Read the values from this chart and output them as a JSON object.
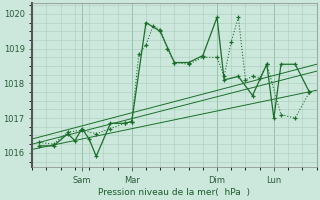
{
  "bg_color": "#cce8dc",
  "grid_color": "#aaccbb",
  "line_color": "#1a6e2a",
  "xlabel": "Pression niveau de la mer(  hPa  )",
  "ylim": [
    1015.6,
    1020.3
  ],
  "yticks": [
    1016,
    1017,
    1018,
    1019,
    1020
  ],
  "xlim": [
    0,
    40
  ],
  "xtick_positions": [
    7,
    14,
    26,
    34
  ],
  "xtick_labels": [
    "Sam",
    "Mar",
    "Dim",
    "Lun"
  ],
  "grid_xticks": [
    0,
    2,
    4,
    6,
    8,
    10,
    12,
    14,
    16,
    18,
    20,
    22,
    24,
    26,
    28,
    30,
    32,
    34,
    36,
    38,
    40
  ],
  "vlines": [
    7,
    14,
    26,
    34
  ],
  "line1_x": [
    1,
    3,
    5,
    7,
    9,
    11,
    13,
    14,
    15,
    16,
    17,
    18,
    19,
    20,
    22,
    24,
    26,
    27,
    28,
    29,
    30,
    31,
    32,
    33,
    35,
    37,
    39
  ],
  "line1_y": [
    1016.3,
    1016.25,
    1016.6,
    1016.65,
    1016.55,
    1016.7,
    1016.85,
    1016.9,
    1018.85,
    1019.1,
    1019.65,
    1019.55,
    1019.0,
    1018.6,
    1018.55,
    1018.75,
    1018.75,
    1018.2,
    1019.2,
    1019.9,
    1018.1,
    1018.2,
    1018.15,
    1018.55,
    1017.1,
    1017.0,
    1017.75
  ],
  "line2_x": [
    1,
    3,
    5,
    6,
    7,
    8,
    9,
    11,
    13,
    14,
    16,
    18,
    20,
    22,
    24,
    26,
    27,
    29,
    31,
    33,
    34,
    35,
    37,
    39
  ],
  "line2_y": [
    1016.2,
    1016.2,
    1016.55,
    1016.35,
    1016.7,
    1016.4,
    1015.9,
    1016.85,
    1016.85,
    1016.9,
    1019.75,
    1019.5,
    1018.6,
    1018.6,
    1018.8,
    1019.9,
    1018.1,
    1018.2,
    1017.65,
    1018.55,
    1017.0,
    1018.55,
    1018.55,
    1017.75
  ],
  "trend1_x": [
    0,
    40
  ],
  "trend1_y": [
    1016.25,
    1018.35
  ],
  "trend2_x": [
    0,
    40
  ],
  "trend2_y": [
    1016.4,
    1018.55
  ],
  "trend3_x": [
    0,
    40
  ],
  "trend3_y": [
    1016.1,
    1017.8
  ]
}
